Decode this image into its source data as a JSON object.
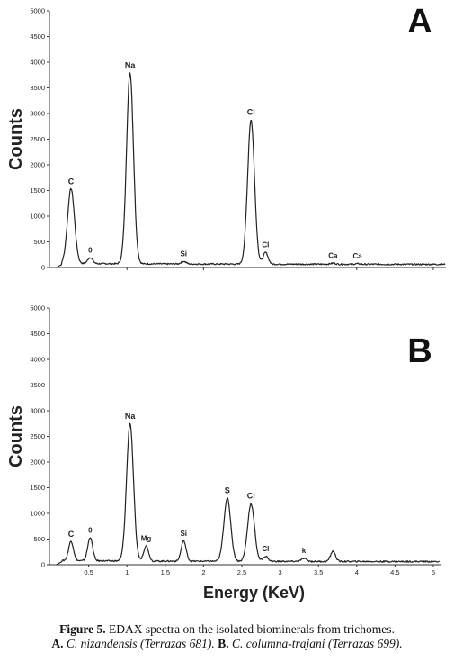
{
  "chart_data": [
    {
      "type": "line",
      "panel_label": "A",
      "ylabel": "Counts",
      "xlabel": "",
      "ylim": [
        0,
        5000
      ],
      "yticks": [
        0,
        500,
        1000,
        1500,
        2000,
        2500,
        3000,
        3500,
        4000,
        4500,
        5000
      ],
      "xlim": [
        0,
        5.5
      ],
      "xticks": [],
      "peaks": [
        {
          "label": "C",
          "x": 0.27,
          "y": 1520
        },
        {
          "label": "0",
          "x": 0.52,
          "y": 180
        },
        {
          "label": "Na",
          "x": 1.04,
          "y": 3780
        },
        {
          "label": "Si",
          "x": 1.74,
          "y": 110
        },
        {
          "label": "Cl",
          "x": 2.62,
          "y": 2870
        },
        {
          "label": "Cl",
          "x": 2.81,
          "y": 290
        },
        {
          "label": "Ca",
          "x": 3.69,
          "y": 80
        },
        {
          "label": "Ca",
          "x": 4.01,
          "y": 70
        }
      ]
    },
    {
      "type": "line",
      "panel_label": "B",
      "ylabel": "Counts",
      "xlabel": "Energy (KeV)",
      "ylim": [
        0,
        5000
      ],
      "yticks": [
        0,
        500,
        1000,
        1500,
        2000,
        2500,
        3000,
        3500,
        4000,
        4500,
        5000
      ],
      "xlim": [
        0,
        5.1
      ],
      "xticks": [
        "0.5",
        "1",
        "1.5",
        "2",
        "2.5",
        "3",
        "3.5",
        "4",
        "4.5",
        "5"
      ],
      "peaks": [
        {
          "label": "C",
          "x": 0.27,
          "y": 440
        },
        {
          "label": "0",
          "x": 0.52,
          "y": 520
        },
        {
          "label": "Na",
          "x": 1.04,
          "y": 2740
        },
        {
          "label": "Mg",
          "x": 1.25,
          "y": 360
        },
        {
          "label": "Si",
          "x": 1.74,
          "y": 460
        },
        {
          "label": "S",
          "x": 2.31,
          "y": 1290
        },
        {
          "label": "Cl",
          "x": 2.62,
          "y": 1180
        },
        {
          "label": "Cl",
          "x": 2.81,
          "y": 160
        },
        {
          "label": "k",
          "x": 3.31,
          "y": 120
        },
        {
          "label": "",
          "x": 3.69,
          "y": 260
        }
      ]
    }
  ],
  "caption": {
    "fig_label": "Figure 5.",
    "fig_text": " EDAX spectra on the isolated biominerals from trichomes.",
    "a_label": "A.",
    "a_species": " C. nizandensis (Terrazas 681).",
    "b_label": " B.",
    "b_species": " C. columna-trajani (Terrazas 699)."
  }
}
